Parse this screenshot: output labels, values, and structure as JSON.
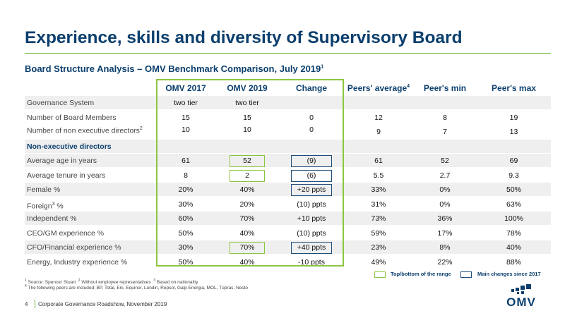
{
  "title": "Experience, skills and diversity of Supervisory Board",
  "subtitle": "Board Structure Analysis – OMV Benchmark Comparison, July 2019",
  "subtitle_sup": "1",
  "columns": {
    "omv2017": "OMV 2017",
    "omv2019": "OMV 2019",
    "change": "Change",
    "peers_avg": "Peers' average",
    "peers_avg_sup": "4",
    "peers_min": "Peer's min",
    "peers_max": "Peer's max"
  },
  "rows": [
    {
      "label": "Governance System",
      "omv2017": "two tier",
      "omv2019": "two tier",
      "change": "",
      "avg": "",
      "min": "",
      "max": ""
    },
    {
      "label": "Number of Board Members",
      "omv2017": "15",
      "omv2019": "15",
      "change": "0",
      "avg": "12",
      "min": "8",
      "max": "19"
    },
    {
      "label": "Number of non executive directors",
      "label_sup": "2",
      "omv2017": "10",
      "omv2019": "10",
      "change": "0",
      "avg": "9",
      "min": "7",
      "max": "13"
    },
    {
      "label": "Non-executive directors"
    },
    {
      "label": "Average age in years",
      "omv2017": "61",
      "omv2019": "52",
      "change": "(9)",
      "avg": "61",
      "min": "52",
      "max": "69"
    },
    {
      "label": "Average tenure in years",
      "omv2017": "8",
      "omv2019": "2",
      "change": "(6)",
      "avg": "5.5",
      "min": "2.7",
      "max": "9.3"
    },
    {
      "label": "Female %",
      "omv2017": "20%",
      "omv2019": "40%",
      "change": "+20 ppts",
      "avg": "33%",
      "min": "0%",
      "max": "50%"
    },
    {
      "label": "Foreign",
      "label_sup": "3",
      "label_suffix": " %",
      "omv2017": "30%",
      "omv2019": "20%",
      "change": "(10) ppts",
      "avg": "31%",
      "min": "0%",
      "max": "63%"
    },
    {
      "label": "Independent %",
      "omv2017": "60%",
      "omv2019": "70%",
      "change": "+10 ppts",
      "avg": "73%",
      "min": "36%",
      "max": "100%"
    },
    {
      "label": "CEO/GM experience %",
      "omv2017": "50%",
      "omv2019": "40%",
      "change": "(10) ppts",
      "avg": "59%",
      "min": "17%",
      "max": "78%"
    },
    {
      "label": "CFO/Financial experience %",
      "omv2017": "30%",
      "omv2019": "70%",
      "change": "+40 ppts",
      "avg": "23%",
      "min": "8%",
      "max": "40%"
    },
    {
      "label": "Energy, Industry experience %",
      "omv2017": "50%",
      "omv2019": "40%",
      "change": "-10 ppts",
      "avg": "49%",
      "min": "22%",
      "max": "88%"
    }
  ],
  "legend": {
    "green": "Top/bottom of the range",
    "blue": "Main changes since 2017",
    "green_color": "#8cc63f",
    "blue_color": "#1f4e79"
  },
  "footnotes": {
    "sup1": "1",
    "fn1": "Source: Spencer Stuart",
    "sup2": "2",
    "fn2": "Without employee representatives",
    "sup3": "3",
    "fn3": "Based on nationality",
    "sup4": "4",
    "fn4": "The following peers are included: BP, Total, Eni, Equinor, Lundin, Repsol, Galp Energia, MOL, Tüpras, Neste"
  },
  "footer": {
    "page": "4",
    "text": "Corporate Governance Roadshow, November 2019"
  },
  "logo": {
    "text": "OMV",
    "color": "#0b3f6e"
  },
  "colors": {
    "title": "#0b3f6e",
    "accent": "#6ab23e",
    "row_shade": "#efefef"
  }
}
